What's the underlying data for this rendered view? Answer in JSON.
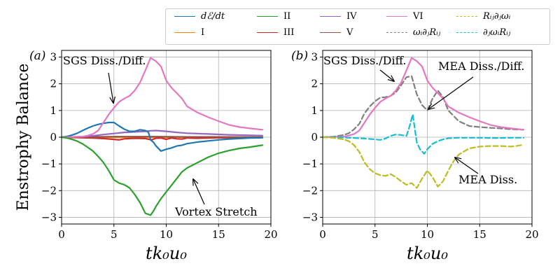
{
  "figure": {
    "ylabel": "Enstrophy Balance",
    "legend": [
      {
        "label": "dℰ/dt",
        "color": "#1f77b4",
        "style": "solid",
        "italic": true
      },
      {
        "label": "I",
        "color": "#ff7f0e",
        "style": "solid",
        "italic": false
      },
      {
        "label": "II",
        "color": "#2ca02c",
        "style": "solid",
        "italic": false
      },
      {
        "label": "III",
        "color": "#d62728",
        "style": "solid",
        "italic": false
      },
      {
        "label": "IV",
        "color": "#9467bd",
        "style": "solid",
        "italic": false
      },
      {
        "label": "V",
        "color": "#8c564b",
        "style": "solid",
        "italic": false
      },
      {
        "label": "VI",
        "color": "#e377c2",
        "style": "solid",
        "italic": false
      },
      {
        "label": "ωᵢ∂ⱼRᵢⱼ",
        "color": "#7f7f7f",
        "style": "dashed",
        "italic": true
      },
      {
        "label": "Rᵢⱼ∂ⱼωᵢ",
        "color": "#bcbd22",
        "style": "dashed",
        "italic": true
      },
      {
        "label": "∂ⱼωᵢRᵢⱼ",
        "color": "#17becf",
        "style": "dashed",
        "italic": true
      }
    ]
  },
  "chart_data": [
    {
      "type": "line",
      "panel_label": "(a)",
      "xlabel": "tk₀u₀",
      "ylabel": "Enstrophy Balance",
      "xlim": [
        0,
        20
      ],
      "ylim": [
        -3.25,
        3.25
      ],
      "xticks": [
        0,
        5,
        10,
        15,
        20
      ],
      "yticks": [
        -3,
        -2,
        -1,
        0,
        1,
        2,
        3
      ],
      "grid": true,
      "series": [
        {
          "name": "I",
          "color": "#ff7f0e",
          "dashed": false,
          "x": [
            0,
            5,
            10,
            15,
            19.2
          ],
          "y": [
            0,
            0,
            0,
            0,
            0
          ]
        },
        {
          "name": "III",
          "color": "#d62728",
          "dashed": false,
          "x": [
            0,
            2,
            3,
            4,
            5,
            5.5,
            6,
            7,
            8,
            8.6,
            9,
            9.5,
            10,
            10.5,
            11,
            11.5,
            12,
            13,
            14,
            15,
            16,
            19.2
          ],
          "y": [
            0,
            -0.02,
            -0.03,
            -0.05,
            -0.08,
            -0.1,
            -0.06,
            -0.04,
            -0.05,
            -0.1,
            -0.04,
            -0.03,
            -0.08,
            -0.03,
            -0.06,
            -0.07,
            -0.03,
            -0.04,
            -0.03,
            -0.02,
            -0.02,
            -0.01
          ]
        },
        {
          "name": "V",
          "color": "#8c564b",
          "dashed": false,
          "x": [
            0,
            3,
            5,
            7,
            9,
            12,
            15,
            19.2
          ],
          "y": [
            0,
            0.01,
            0.02,
            0.02,
            0.02,
            0.01,
            0.01,
            0.0
          ]
        },
        {
          "name": "IV",
          "color": "#9467bd",
          "dashed": false,
          "x": [
            0,
            2,
            3,
            4,
            5,
            6,
            7,
            8,
            8.5,
            9,
            10,
            11,
            12,
            14,
            16,
            19.2
          ],
          "y": [
            0,
            0.02,
            0.05,
            0.1,
            0.14,
            0.18,
            0.2,
            0.22,
            0.24,
            0.25,
            0.22,
            0.18,
            0.15,
            0.12,
            0.09,
            0.06
          ]
        },
        {
          "name": "dℰ/dt",
          "color": "#1f77b4",
          "dashed": false,
          "x": [
            0,
            0.5,
            1,
            1.5,
            2,
            2.5,
            3,
            3.5,
            4,
            4.5,
            5,
            5.5,
            6,
            6.5,
            7,
            7.5,
            8,
            8.3,
            8.5,
            8.8,
            9,
            9.5,
            10,
            10.5,
            11,
            11.5,
            12,
            13,
            14,
            15,
            16,
            17,
            18,
            19.2
          ],
          "y": [
            0,
            0.03,
            0.08,
            0.15,
            0.25,
            0.34,
            0.42,
            0.48,
            0.52,
            0.55,
            0.55,
            0.42,
            0.3,
            0.22,
            0.22,
            0.28,
            0.25,
            0.18,
            -0.1,
            -0.2,
            -0.32,
            -0.52,
            -0.45,
            -0.4,
            -0.33,
            -0.3,
            -0.24,
            -0.18,
            -0.14,
            -0.1,
            -0.07,
            -0.05,
            -0.03,
            -0.02
          ]
        },
        {
          "name": "VI",
          "color": "#e377c2",
          "dashed": false,
          "x": [
            0,
            1,
            2,
            2.5,
            3,
            3.5,
            4,
            4.5,
            5,
            5.5,
            6,
            6.5,
            7,
            7.5,
            8,
            8.5,
            9,
            9.5,
            10,
            10.5,
            11,
            11.5,
            12,
            13,
            14,
            15,
            16,
            17,
            18,
            19.2
          ],
          "y": [
            0,
            0.01,
            0.02,
            0.06,
            0.12,
            0.25,
            0.55,
            0.85,
            1.1,
            1.32,
            1.45,
            1.55,
            1.75,
            2.05,
            2.5,
            2.97,
            2.85,
            2.65,
            2.12,
            1.85,
            1.65,
            1.45,
            1.15,
            0.92,
            0.75,
            0.6,
            0.46,
            0.38,
            0.33,
            0.28
          ]
        },
        {
          "name": "II",
          "color": "#2ca02c",
          "dashed": false,
          "x": [
            0,
            0.5,
            1,
            1.5,
            2,
            2.5,
            3,
            3.5,
            4,
            4.5,
            5,
            5.5,
            6,
            6.5,
            7,
            7.5,
            8,
            8.5,
            8.8,
            9,
            9.5,
            10,
            10.5,
            11,
            11.5,
            12,
            13,
            14,
            15,
            16,
            17,
            18,
            19.2
          ],
          "y": [
            0,
            -0.03,
            -0.08,
            -0.15,
            -0.25,
            -0.38,
            -0.52,
            -0.72,
            -0.95,
            -1.25,
            -1.6,
            -1.72,
            -1.78,
            -1.9,
            -2.15,
            -2.45,
            -2.85,
            -2.92,
            -2.75,
            -2.6,
            -2.3,
            -2.05,
            -1.8,
            -1.55,
            -1.3,
            -1.15,
            -0.95,
            -0.75,
            -0.6,
            -0.5,
            -0.42,
            -0.37,
            -0.3
          ]
        }
      ],
      "annotations": [
        {
          "text": "SGS Diss./Diff."
        },
        {
          "text": "Vortex Stretch"
        }
      ]
    },
    {
      "type": "line",
      "panel_label": "(b)",
      "xlabel": "tk₀u₀",
      "xlim": [
        0,
        20
      ],
      "ylim": [
        -3.25,
        3.25
      ],
      "xticks": [
        0,
        5,
        10,
        15,
        20
      ],
      "yticks": [
        -3,
        -2,
        -1,
        0,
        1,
        2,
        3
      ],
      "grid": true,
      "series": [
        {
          "name": "ωᵢ∂ⱼRᵢⱼ",
          "color": "#7f7f7f",
          "dashed": true,
          "x": [
            0,
            1,
            2,
            2.5,
            3,
            3.5,
            4,
            4.5,
            5,
            5.5,
            6,
            6.5,
            7,
            7.5,
            8,
            8.5,
            9,
            9.5,
            10,
            10.5,
            11,
            11.5,
            12,
            13,
            14,
            15,
            16,
            17,
            18,
            19.2
          ],
          "y": [
            0,
            0.02,
            0.08,
            0.15,
            0.3,
            0.5,
            0.9,
            1.15,
            1.35,
            1.48,
            1.5,
            1.55,
            1.68,
            1.95,
            2.25,
            2.28,
            1.6,
            1.2,
            1.0,
            1.45,
            1.75,
            1.5,
            1.0,
            0.6,
            0.42,
            0.38,
            0.35,
            0.33,
            0.3,
            0.28
          ]
        },
        {
          "name": "VI",
          "color": "#e377c2",
          "dashed": false,
          "x": [
            0,
            1,
            2,
            2.5,
            3,
            3.5,
            4,
            4.5,
            5,
            5.5,
            6,
            6.5,
            7,
            7.5,
            8,
            8.5,
            9,
            9.5,
            10,
            10.5,
            11,
            11.5,
            12,
            13,
            14,
            15,
            16,
            17,
            18,
            19.2
          ],
          "y": [
            0,
            0.01,
            0.02,
            0.06,
            0.12,
            0.25,
            0.55,
            0.85,
            1.1,
            1.32,
            1.45,
            1.55,
            1.75,
            2.05,
            2.5,
            2.97,
            2.85,
            2.65,
            2.12,
            1.85,
            1.65,
            1.45,
            1.15,
            0.92,
            0.75,
            0.6,
            0.46,
            0.38,
            0.33,
            0.28
          ]
        },
        {
          "name": "∂ⱼωᵢRᵢⱼ",
          "color": "#17becf",
          "dashed": true,
          "x": [
            0,
            1,
            2,
            3,
            4,
            5,
            5.5,
            6,
            6.5,
            7,
            7.5,
            8,
            8.3,
            8.6,
            9,
            9.3,
            9.7,
            10,
            10.5,
            11,
            11.5,
            12,
            13,
            14,
            15,
            16,
            17,
            18,
            19.2
          ],
          "y": [
            0,
            0.0,
            -0.01,
            -0.03,
            -0.05,
            -0.08,
            -0.1,
            -0.05,
            0.05,
            0.1,
            0.08,
            0.05,
            0.4,
            0.85,
            -0.2,
            -0.45,
            -0.62,
            -0.45,
            -0.25,
            -0.15,
            -0.08,
            -0.04,
            -0.02,
            -0.02,
            -0.02,
            -0.03,
            -0.03,
            -0.02,
            -0.02
          ]
        },
        {
          "name": "Rᵢⱼ∂ⱼωᵢ",
          "color": "#bcbd22",
          "dashed": true,
          "x": [
            0,
            1,
            2,
            2.5,
            3,
            3.5,
            4,
            4.5,
            5,
            5.5,
            6,
            6.5,
            7,
            7.5,
            8,
            8.5,
            9,
            9.5,
            10,
            10.5,
            11,
            11.5,
            12,
            12.5,
            13,
            14,
            15,
            16,
            17,
            18,
            18.5,
            19.2
          ],
          "y": [
            0,
            -0.02,
            -0.08,
            -0.15,
            -0.3,
            -0.55,
            -0.95,
            -1.2,
            -1.35,
            -1.42,
            -1.45,
            -1.38,
            -1.5,
            -1.65,
            -1.78,
            -1.72,
            -1.9,
            -1.55,
            -1.25,
            -1.5,
            -1.85,
            -1.65,
            -1.25,
            -0.9,
            -0.65,
            -0.42,
            -0.35,
            -0.33,
            -0.33,
            -0.35,
            -0.33,
            -0.28
          ]
        }
      ],
      "annotations": [
        {
          "text": "SGS Diss./Diff."
        },
        {
          "text": "MEA Diss./Diff."
        },
        {
          "text": "MEA Diss."
        }
      ]
    }
  ]
}
